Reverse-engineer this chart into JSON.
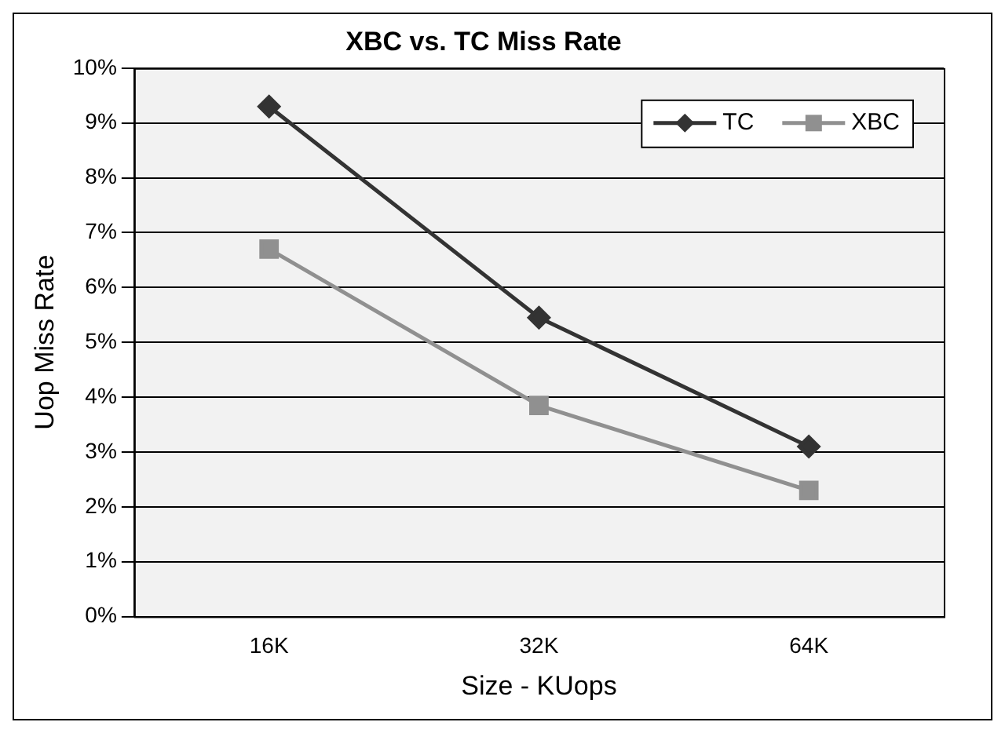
{
  "chart_data": {
    "type": "line",
    "title": "XBC vs. TC Miss Rate",
    "xlabel": "Size - KUops",
    "ylabel": "Uop Miss Rate",
    "categories": [
      "16K",
      "32K",
      "64K"
    ],
    "series": [
      {
        "name": "TC",
        "color": "#333333",
        "marker": "diamond",
        "values": [
          9.3,
          5.45,
          3.1
        ]
      },
      {
        "name": "XBC",
        "color": "#909090",
        "marker": "square",
        "values": [
          6.7,
          3.85,
          2.3
        ]
      }
    ],
    "ylim": [
      0,
      10
    ],
    "yticks": [
      {
        "value": 0,
        "label": "0%"
      },
      {
        "value": 1,
        "label": "1%"
      },
      {
        "value": 2,
        "label": "2%"
      },
      {
        "value": 3,
        "label": "3%"
      },
      {
        "value": 4,
        "label": "4%"
      },
      {
        "value": 5,
        "label": "5%"
      },
      {
        "value": 6,
        "label": "6%"
      },
      {
        "value": 7,
        "label": "7%"
      },
      {
        "value": 8,
        "label": "8%"
      },
      {
        "value": 9,
        "label": "9%"
      },
      {
        "value": 10,
        "label": "10%"
      }
    ],
    "grid": "y",
    "legend": "top right",
    "line_style": "solid"
  }
}
